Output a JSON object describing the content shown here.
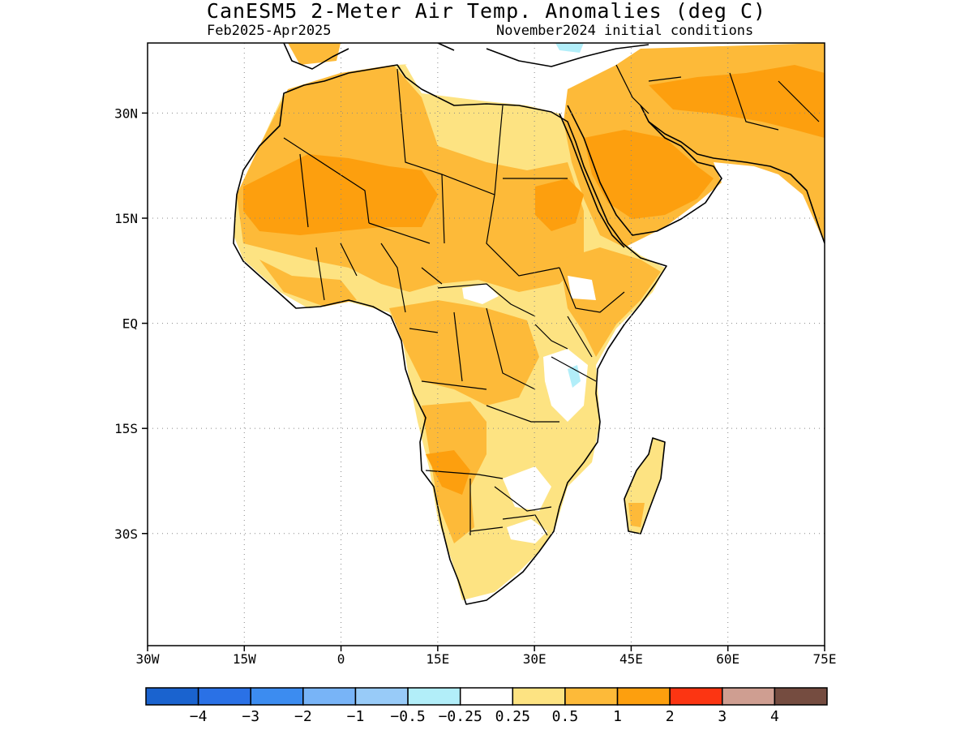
{
  "title": "CanESM5 2-Meter Air Temp. Anomalies (deg C)",
  "subtitle_left": "Feb2025-Apr2025",
  "subtitle_right": "November2024 initial conditions",
  "map": {
    "region": "Africa",
    "lon_range": [
      -30,
      75
    ],
    "lat_range": [
      -46,
      40
    ],
    "grid": true,
    "x_ticks": [
      {
        "value": -30,
        "label": "30W"
      },
      {
        "value": -15,
        "label": "15W"
      },
      {
        "value": 0,
        "label": "0"
      },
      {
        "value": 15,
        "label": "15E"
      },
      {
        "value": 30,
        "label": "30E"
      },
      {
        "value": 45,
        "label": "45E"
      },
      {
        "value": 60,
        "label": "60E"
      },
      {
        "value": 75,
        "label": "75E"
      }
    ],
    "y_ticks": [
      {
        "value": 30,
        "label": "30N"
      },
      {
        "value": 15,
        "label": "15N"
      },
      {
        "value": 0,
        "label": "EQ"
      },
      {
        "value": -15,
        "label": "15S"
      },
      {
        "value": -30,
        "label": "30S"
      }
    ]
  },
  "colorbar": {
    "colors": [
      "#1a63cf",
      "#2a71e6",
      "#3c8cf0",
      "#78b4f7",
      "#98cbf8",
      "#b2eef9",
      "#ffffff",
      "#fde382",
      "#fdba39",
      "#fd9f0e",
      "#fc3512",
      "#cf9e91",
      "#754c40"
    ],
    "labels": [
      "−4",
      "−3",
      "−2",
      "−1",
      "−0.5",
      "−0.25",
      "0.25",
      "0.5",
      "1",
      "2",
      "3",
      "4"
    ]
  },
  "colors": {
    "light_orange": "#fde382",
    "orange": "#fdba39",
    "dark_orange": "#fd9f0e",
    "light_blue": "#b2eef9"
  }
}
